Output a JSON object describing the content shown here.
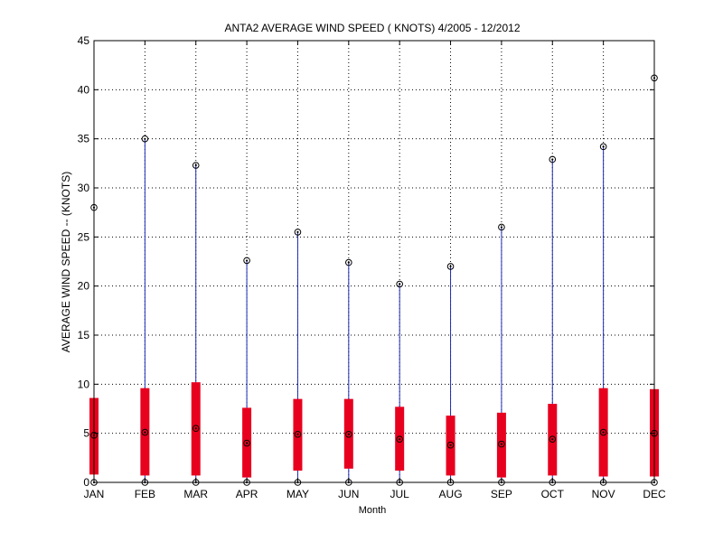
{
  "chart_data": {
    "type": "box",
    "title": "ANTA2  AVERAGE WIND SPEED ( KNOTS) 4/2005 - 12/2012",
    "xlabel": "Month",
    "ylabel": "AVERAGE WIND SPEED -- (KNOTS)",
    "categories": [
      "JAN",
      "FEB",
      "MAR",
      "APR",
      "MAY",
      "JUN",
      "JUL",
      "AUG",
      "SEP",
      "OCT",
      "NOV",
      "DEC"
    ],
    "ylim": [
      0,
      45
    ],
    "yticks": [
      0,
      5,
      10,
      15,
      20,
      25,
      30,
      35,
      40,
      45
    ],
    "yticklabels": [
      "0",
      "5",
      "10",
      "15",
      "20",
      "25",
      "30",
      "35",
      "40",
      "45"
    ],
    "grid": true,
    "series": [
      {
        "min": [
          0,
          0,
          0,
          0,
          0,
          0,
          0,
          0,
          0,
          0,
          0,
          0
        ],
        "q1": [
          0.8,
          0.7,
          0.7,
          0.5,
          1.2,
          1.4,
          1.2,
          0.7,
          0.5,
          0.7,
          0.6,
          0.6
        ],
        "mean": [
          4.8,
          5.1,
          5.5,
          4.0,
          4.9,
          4.9,
          4.4,
          3.8,
          3.9,
          4.4,
          5.1,
          5.0
        ],
        "q3": [
          8.6,
          9.6,
          10.2,
          7.6,
          8.5,
          8.5,
          7.7,
          6.8,
          7.1,
          8.0,
          9.6,
          9.5
        ],
        "max": [
          28.0,
          35.0,
          32.3,
          22.6,
          25.5,
          22.4,
          20.2,
          22.0,
          26.0,
          32.9,
          34.2,
          41.2
        ]
      }
    ],
    "colors": {
      "whisker": "#1f2db5",
      "box": "#e8001f",
      "marker": "#000000",
      "grid": "#000000",
      "axes": "#000000"
    }
  }
}
